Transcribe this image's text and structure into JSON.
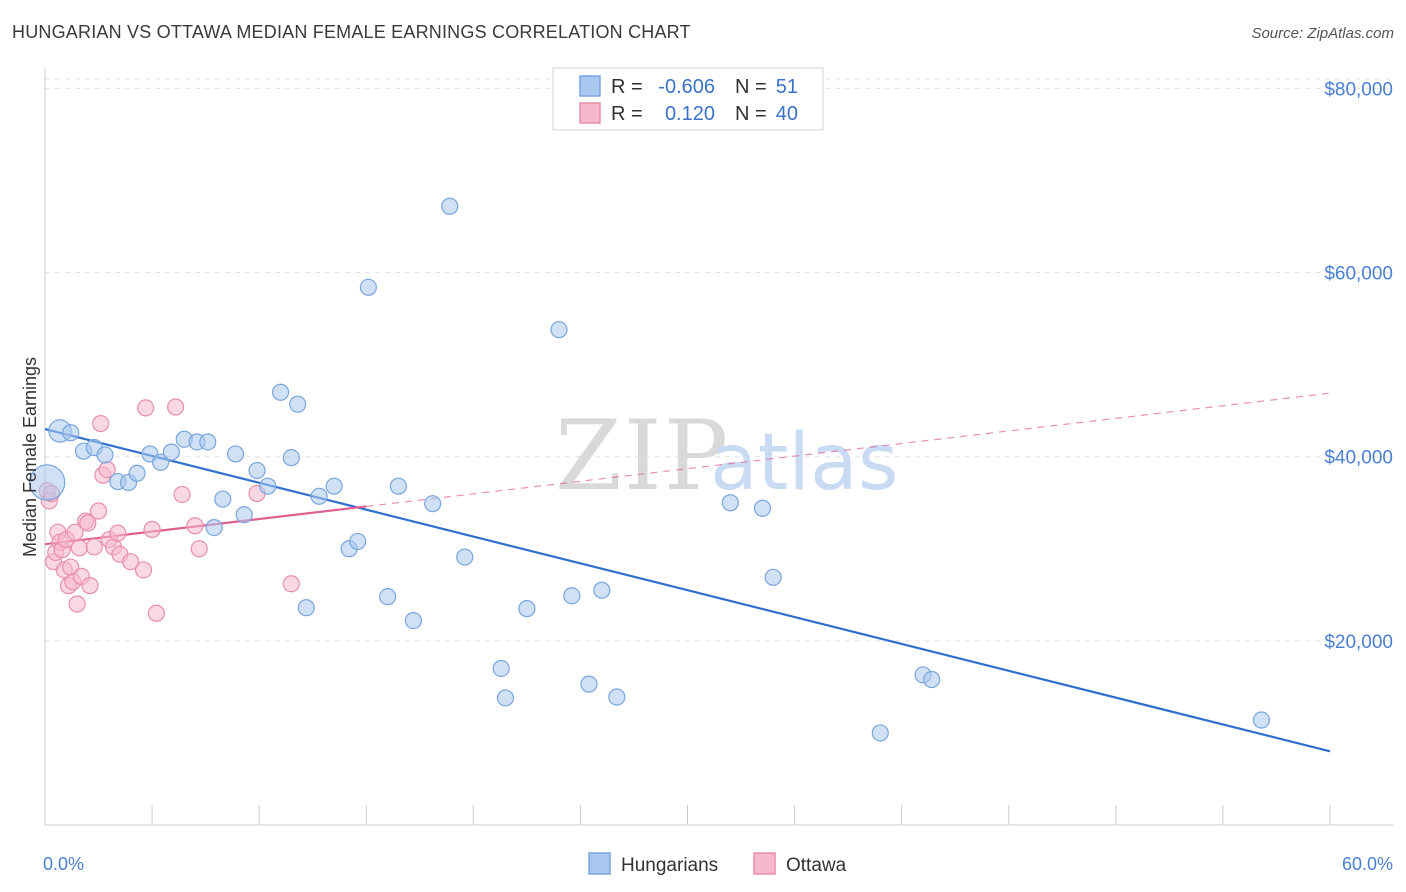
{
  "title": "HUNGARIAN VS OTTAWA MEDIAN FEMALE EARNINGS CORRELATION CHART",
  "source": "Source: ZipAtlas.com",
  "watermark": {
    "zip": "ZIP",
    "atlas": "atlas"
  },
  "colors": {
    "hungarians_fill": "#a9c8ef",
    "hungarians_stroke": "#7aa5dd",
    "hungarians_line": "#2f6fd0",
    "ottawa_fill": "#f5b8cc",
    "ottawa_stroke": "#e88eae",
    "ottawa_line": "#e0608f",
    "axis_text": "#4a7fd0",
    "grid": "#e3e3e3"
  },
  "legend": {
    "rows": [
      {
        "r_label": "R =",
        "r_value": "-0.606",
        "n_label": "N =",
        "n_value": "51"
      },
      {
        "r_label": "R =",
        "r_value": "0.120",
        "n_label": "N =",
        "n_value": "40"
      }
    ]
  },
  "chart_data": {
    "type": "scatter",
    "xlabel": "",
    "ylabel": "Median Female Earnings",
    "xlim": [
      0,
      60
    ],
    "ylim": [
      0,
      82000
    ],
    "x_tick_labels": [
      "0.0%",
      "60.0%"
    ],
    "y_ticks": [
      20000,
      40000,
      60000,
      80000
    ],
    "y_tick_labels": [
      "$20,000",
      "$40,000",
      "$60,000",
      "$80,000"
    ],
    "grid": true,
    "legend_position": "top-center",
    "series": [
      {
        "name": "Hungarians",
        "r": -0.606,
        "n": 51,
        "trend": {
          "x0": 0,
          "y0": 43000,
          "x1": 60,
          "y1": 8000,
          "dashed_to": 60
        },
        "points": [
          [
            0.1,
            37200,
            2.2
          ],
          [
            0.7,
            42800,
            1.4
          ],
          [
            1.2,
            42600,
            1.0
          ],
          [
            1.8,
            40600,
            1.0
          ],
          [
            2.3,
            41000,
            1.0
          ],
          [
            2.8,
            40200,
            1.0
          ],
          [
            3.4,
            37300,
            1.0
          ],
          [
            3.9,
            37200,
            1.0
          ],
          [
            4.3,
            38200,
            1.0
          ],
          [
            4.9,
            40300,
            1.0
          ],
          [
            5.4,
            39400,
            1.0
          ],
          [
            5.9,
            40500,
            1.0
          ],
          [
            6.5,
            41900,
            1.0
          ],
          [
            7.1,
            41600,
            1.0
          ],
          [
            7.6,
            41600,
            1.0
          ],
          [
            7.9,
            32300,
            1.0
          ],
          [
            8.3,
            35400,
            1.0
          ],
          [
            8.9,
            40300,
            1.0
          ],
          [
            9.3,
            33700,
            1.0
          ],
          [
            9.9,
            38500,
            1.0
          ],
          [
            10.4,
            36800,
            1.0
          ],
          [
            11.0,
            47000,
            1.0
          ],
          [
            11.5,
            39900,
            1.0
          ],
          [
            11.8,
            45700,
            1.0
          ],
          [
            12.2,
            23600,
            1.0
          ],
          [
            12.8,
            35700,
            1.0
          ],
          [
            13.5,
            36800,
            1.0
          ],
          [
            14.2,
            30000,
            1.0
          ],
          [
            14.6,
            30800,
            1.0
          ],
          [
            15.1,
            58400,
            1.0
          ],
          [
            16.0,
            24800,
            1.0
          ],
          [
            16.5,
            36800,
            1.0
          ],
          [
            17.2,
            22200,
            1.0
          ],
          [
            18.1,
            34900,
            1.0
          ],
          [
            18.9,
            67200,
            1.0
          ],
          [
            19.6,
            29100,
            1.0
          ],
          [
            21.3,
            17000,
            1.0
          ],
          [
            21.5,
            13800,
            1.0
          ],
          [
            22.5,
            23500,
            1.0
          ],
          [
            24.0,
            53800,
            1.0
          ],
          [
            24.6,
            24900,
            1.0
          ],
          [
            25.4,
            15300,
            1.0
          ],
          [
            26.0,
            25500,
            1.0
          ],
          [
            26.7,
            13900,
            1.0
          ],
          [
            32.0,
            35000,
            1.0
          ],
          [
            33.5,
            34400,
            1.0
          ],
          [
            34.0,
            26900,
            1.0
          ],
          [
            39.0,
            10000,
            1.0
          ],
          [
            41.0,
            16300,
            1.0
          ],
          [
            41.4,
            15800,
            1.0
          ],
          [
            56.8,
            11400,
            1.0
          ]
        ]
      },
      {
        "name": "Ottawa",
        "r": 0.12,
        "n": 40,
        "trend": {
          "x0": 0,
          "y0": 30500,
          "x1": 15,
          "y1": 34600,
          "dashed_to": 60
        },
        "points": [
          [
            0.1,
            36300,
            1.0
          ],
          [
            0.2,
            35200,
            1.0
          ],
          [
            0.3,
            36000,
            1.0
          ],
          [
            0.4,
            28600,
            1.0
          ],
          [
            0.5,
            29600,
            1.0
          ],
          [
            0.6,
            31800,
            1.0
          ],
          [
            0.7,
            30700,
            1.0
          ],
          [
            0.8,
            29900,
            1.0
          ],
          [
            0.9,
            27700,
            1.0
          ],
          [
            1.0,
            31000,
            1.0
          ],
          [
            1.1,
            26000,
            1.0
          ],
          [
            1.2,
            28000,
            1.0
          ],
          [
            1.3,
            26400,
            1.0
          ],
          [
            1.4,
            31800,
            1.0
          ],
          [
            1.5,
            24000,
            1.0
          ],
          [
            1.6,
            30100,
            1.0
          ],
          [
            1.7,
            27000,
            1.0
          ],
          [
            1.9,
            33000,
            1.0
          ],
          [
            2.0,
            32800,
            1.0
          ],
          [
            2.1,
            26000,
            1.0
          ],
          [
            2.3,
            30200,
            1.0
          ],
          [
            2.5,
            34100,
            1.0
          ],
          [
            2.6,
            43600,
            1.0
          ],
          [
            2.7,
            38000,
            1.0
          ],
          [
            2.9,
            38600,
            1.0
          ],
          [
            3.0,
            31000,
            1.0
          ],
          [
            3.2,
            30200,
            1.0
          ],
          [
            3.4,
            31700,
            1.0
          ],
          [
            3.5,
            29400,
            1.0
          ],
          [
            4.0,
            28600,
            1.0
          ],
          [
            4.6,
            27700,
            1.0
          ],
          [
            4.7,
            45300,
            1.0
          ],
          [
            5.0,
            32100,
            1.0
          ],
          [
            5.2,
            23000,
            1.0
          ],
          [
            6.1,
            45400,
            1.0
          ],
          [
            6.4,
            35900,
            1.0
          ],
          [
            7.0,
            32500,
            1.0
          ],
          [
            7.2,
            30000,
            1.0
          ],
          [
            9.9,
            36000,
            1.0
          ],
          [
            11.5,
            26200,
            1.0
          ]
        ]
      }
    ]
  }
}
